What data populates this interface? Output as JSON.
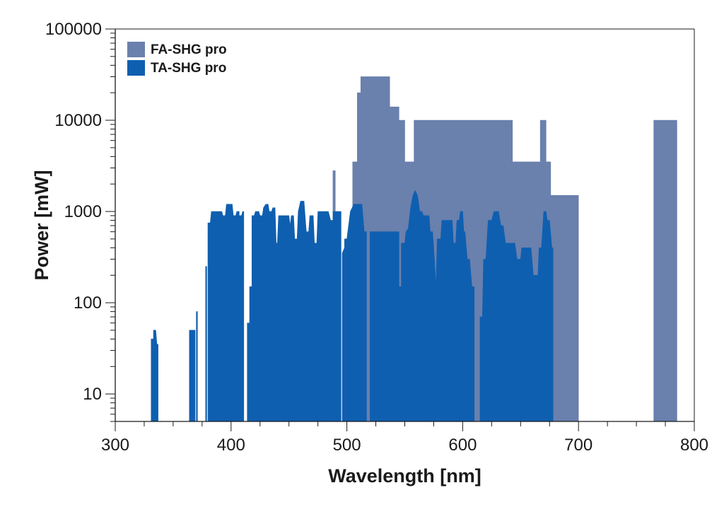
{
  "chart_data": {
    "type": "area",
    "title": "",
    "xlabel": "Wavelength [nm]",
    "ylabel": "Power [mW]",
    "xlim": [
      300,
      800
    ],
    "ylim": [
      5,
      100000
    ],
    "y_scale": "log",
    "grid": false,
    "legend_position": "top-left",
    "x_ticks": [
      300,
      400,
      500,
      600,
      700,
      800
    ],
    "x_tick_labels": [
      "300",
      "400",
      "500",
      "600",
      "700",
      "800"
    ],
    "y_ticks": [
      10,
      100,
      1000,
      10000,
      100000
    ],
    "y_tick_labels": [
      "10",
      "100",
      "1000",
      "10000",
      "100000"
    ],
    "series": [
      {
        "name": "FA-SHG pro",
        "color": "#6a80ad",
        "segments": [
          [
            [
              488,
              0
            ],
            [
              488,
              2800
            ],
            [
              490,
              2800
            ],
            [
              490,
              0
            ]
          ],
          [
            [
              505,
              0
            ],
            [
              505,
              3500
            ],
            [
              509,
              3500
            ],
            [
              509,
              20000
            ],
            [
              512,
              20000
            ],
            [
              512,
              30000
            ],
            [
              537,
              30000
            ],
            [
              537,
              14000
            ],
            [
              545,
              14000
            ],
            [
              545,
              10000
            ],
            [
              550,
              10000
            ],
            [
              550,
              3500
            ],
            [
              558,
              3500
            ],
            [
              558,
              10000
            ],
            [
              643,
              10000
            ],
            [
              643,
              3500
            ],
            [
              667,
              3500
            ],
            [
              667,
              10000
            ],
            [
              672,
              10000
            ],
            [
              672,
              3500
            ],
            [
              676,
              3500
            ],
            [
              676,
              1500
            ],
            [
              700,
              1500
            ],
            [
              700,
              0
            ]
          ],
          [
            [
              765,
              0
            ],
            [
              765,
              10000
            ],
            [
              785,
              10000
            ],
            [
              785,
              0
            ]
          ]
        ]
      },
      {
        "name": "TA-SHG pro",
        "color": "#0f5fb0",
        "segments": [
          [
            [
              331,
              0
            ],
            [
              331,
              40
            ],
            [
              333,
              40
            ],
            [
              333,
              50
            ],
            [
              335,
              50
            ],
            [
              336,
              35
            ],
            [
              337,
              35
            ],
            [
              337,
              0
            ]
          ],
          [
            [
              364,
              0
            ],
            [
              364,
              50
            ],
            [
              369,
              50
            ],
            [
              369,
              0
            ]
          ],
          [
            [
              370,
              0
            ],
            [
              370,
              80
            ],
            [
              371,
              80
            ],
            [
              371,
              0
            ]
          ],
          [
            [
              378,
              0
            ],
            [
              378,
              250
            ],
            [
              379,
              250
            ],
            [
              379,
              0
            ]
          ],
          [
            [
              380,
              0
            ],
            [
              380,
              750
            ],
            [
              382,
              750
            ],
            [
              383,
              1000
            ],
            [
              392,
              1000
            ],
            [
              393,
              900
            ],
            [
              395,
              900
            ],
            [
              396,
              1200
            ],
            [
              401,
              1200
            ],
            [
              402,
              900
            ],
            [
              404,
              900
            ],
            [
              405,
              1000
            ],
            [
              407,
              1000
            ],
            [
              407,
              900
            ],
            [
              409,
              900
            ],
            [
              410,
              1000
            ],
            [
              411,
              1000
            ],
            [
              411,
              0
            ]
          ],
          [
            [
              414,
              0
            ],
            [
              414,
              60
            ],
            [
              416,
              60
            ],
            [
              416,
              150
            ],
            [
              418,
              150
            ],
            [
              418,
              900
            ],
            [
              420,
              900
            ],
            [
              421,
              1000
            ],
            [
              424,
              1000
            ],
            [
              425,
              900
            ],
            [
              427,
              900
            ],
            [
              428,
              1100
            ],
            [
              430,
              1200
            ],
            [
              432,
              1200
            ],
            [
              433,
              1000
            ],
            [
              435,
              1000
            ],
            [
              436,
              1100
            ],
            [
              438,
              1100
            ],
            [
              439,
              450
            ],
            [
              440,
              450
            ],
            [
              441,
              900
            ],
            [
              450,
              900
            ],
            [
              451,
              700
            ],
            [
              452,
              900
            ],
            [
              454,
              900
            ],
            [
              455,
              500
            ],
            [
              457,
              500
            ],
            [
              458,
              1000
            ],
            [
              460,
              1300
            ],
            [
              463,
              1300
            ],
            [
              465,
              600
            ],
            [
              467,
              600
            ],
            [
              468,
              900
            ],
            [
              471,
              900
            ],
            [
              472,
              450
            ],
            [
              474,
              450
            ],
            [
              475,
              1000
            ],
            [
              484,
              1000
            ],
            [
              486,
              800
            ],
            [
              488,
              800
            ],
            [
              488,
              1000
            ],
            [
              495,
              1000
            ],
            [
              495,
              0
            ]
          ],
          [
            [
              496,
              0
            ],
            [
              496,
              350
            ],
            [
              498,
              400
            ],
            [
              498,
              500
            ],
            [
              500,
              500
            ],
            [
              503,
              1000
            ],
            [
              506,
              1200
            ],
            [
              513,
              1200
            ],
            [
              515,
              600
            ],
            [
              517,
              600
            ],
            [
              517,
              0
            ]
          ],
          [
            [
              520,
              0
            ],
            [
              520,
              600
            ],
            [
              545,
              600
            ],
            [
              545,
              150
            ],
            [
              547,
              150
            ],
            [
              547,
              450
            ],
            [
              550,
              450
            ],
            [
              551,
              600
            ],
            [
              553,
              650
            ],
            [
              555,
              1100
            ],
            [
              557,
              1500
            ],
            [
              559,
              1700
            ],
            [
              561,
              1500
            ],
            [
              563,
              1000
            ],
            [
              565,
              1000
            ],
            [
              566,
              900
            ],
            [
              571,
              900
            ],
            [
              572,
              600
            ],
            [
              574,
              600
            ],
            [
              575,
              400
            ],
            [
              577,
              150
            ],
            [
              578,
              500
            ],
            [
              581,
              500
            ],
            [
              582,
              800
            ],
            [
              591,
              800
            ],
            [
              592,
              450
            ],
            [
              594,
              450
            ],
            [
              595,
              800
            ],
            [
              597,
              800
            ],
            [
              598,
              1000
            ],
            [
              600,
              1000
            ],
            [
              601,
              600
            ],
            [
              602,
              600
            ],
            [
              604,
              300
            ],
            [
              606,
              300
            ],
            [
              608,
              150
            ],
            [
              610,
              150
            ],
            [
              610,
              0
            ]
          ],
          [
            [
              615,
              0
            ],
            [
              615,
              70
            ],
            [
              617,
              70
            ],
            [
              618,
              300
            ],
            [
              620,
              300
            ],
            [
              622,
              800
            ],
            [
              625,
              800
            ],
            [
              627,
              1000
            ],
            [
              631,
              1000
            ],
            [
              633,
              700
            ],
            [
              635,
              700
            ],
            [
              637,
              450
            ],
            [
              645,
              450
            ],
            [
              647,
              300
            ],
            [
              650,
              300
            ],
            [
              651,
              400
            ],
            [
              659,
              400
            ],
            [
              661,
              200
            ],
            [
              665,
              200
            ],
            [
              666,
              400
            ],
            [
              668,
              400
            ],
            [
              670,
              1000
            ],
            [
              672,
              1000
            ],
            [
              673,
              800
            ],
            [
              675,
              800
            ],
            [
              677,
              400
            ],
            [
              678,
              400
            ],
            [
              678,
              0
            ]
          ]
        ]
      }
    ]
  }
}
